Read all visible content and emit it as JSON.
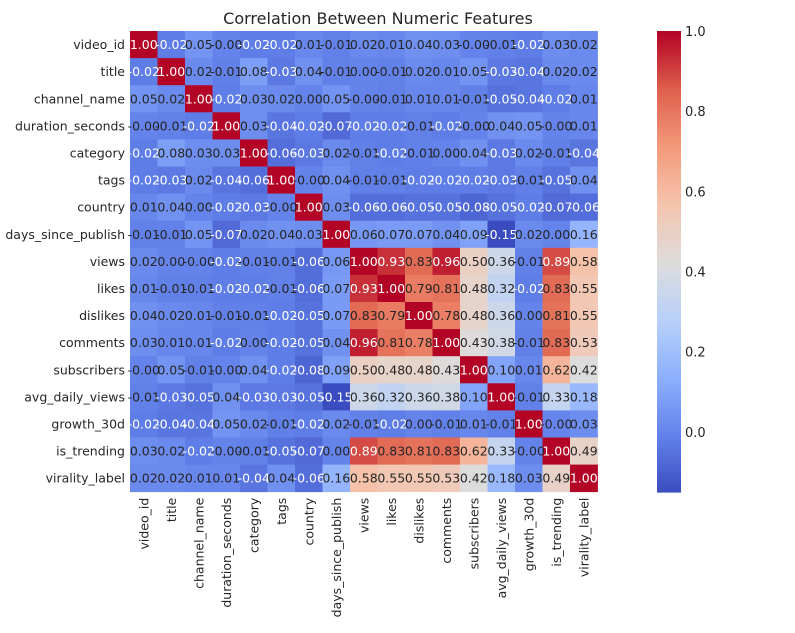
{
  "chart_data": {
    "type": "heatmap",
    "title": "Correlation Between Numeric Features",
    "xlabel": "",
    "ylabel": "",
    "categories": [
      "video_id",
      "title",
      "channel_name",
      "duration_seconds",
      "category",
      "tags",
      "country",
      "days_since_publish",
      "views",
      "likes",
      "dislikes",
      "comments",
      "subscribers",
      "avg_daily_views",
      "growth_30d",
      "is_trending",
      "virality_label"
    ],
    "values": [
      [
        "1.00",
        "-0.02",
        "0.05",
        "-0.00",
        "-0.02",
        "-0.02",
        "0.01",
        "-0.01",
        "0.02",
        "0.01",
        "0.04",
        "0.03",
        "-0.00",
        "-0.01",
        "-0.02",
        "0.03",
        "0.02"
      ],
      [
        "-0.02",
        "1.00",
        "0.02",
        "-0.01",
        "0.08",
        "-0.03",
        "0.04",
        "-0.01",
        "0.00",
        "-0.01",
        "0.02",
        "0.01",
        "0.05",
        "-0.03",
        "-0.04",
        "0.02",
        "0.02"
      ],
      [
        "0.05",
        "0.02",
        "1.00",
        "-0.02",
        "0.03",
        "0.02",
        "0.00",
        "0.05",
        "-0.00",
        "-0.01",
        "0.01",
        "0.01",
        "-0.01",
        "-0.05",
        "-0.04",
        "-0.02",
        "0.01"
      ],
      [
        "-0.00",
        "-0.01",
        "-0.02",
        "1.00",
        "0.03",
        "-0.04",
        "-0.02",
        "-0.07",
        "-0.02",
        "-0.02",
        "-0.01",
        "-0.02",
        "-0.00",
        "0.04",
        "0.05",
        "-0.00",
        "0.01"
      ],
      [
        "-0.02",
        "0.08",
        "0.03",
        "0.03",
        "1.00",
        "-0.06",
        "-0.03",
        "0.02",
        "-0.01",
        "-0.02",
        "-0.01",
        "0.00",
        "0.04",
        "-0.03",
        "0.02",
        "-0.01",
        "-0.04"
      ],
      [
        "-0.02",
        "-0.03",
        "0.02",
        "-0.04",
        "-0.06",
        "1.00",
        "-0.00",
        "0.04",
        "-0.01",
        "-0.01",
        "-0.02",
        "-0.02",
        "-0.02",
        "-0.03",
        "-0.01",
        "-0.05",
        "0.04"
      ],
      [
        "0.01",
        "0.04",
        "0.00",
        "-0.02",
        "-0.03",
        "-0.00",
        "1.00",
        "0.03",
        "-0.06",
        "-0.06",
        "-0.05",
        "-0.05",
        "-0.08",
        "-0.05",
        "-0.02",
        "-0.07",
        "-0.06"
      ],
      [
        "-0.01",
        "-0.01",
        "0.05",
        "-0.07",
        "0.02",
        "0.04",
        "0.03",
        "1.00",
        "0.06",
        "0.07",
        "0.07",
        "0.04",
        "0.09",
        "-0.15",
        "0.02",
        "0.00",
        "0.16"
      ],
      [
        "0.02",
        "0.00",
        "-0.00",
        "-0.02",
        "-0.01",
        "-0.01",
        "-0.06",
        "0.06",
        "1.00",
        "0.93",
        "0.83",
        "0.96",
        "0.50",
        "0.36",
        "-0.01",
        "0.89",
        "0.58"
      ],
      [
        "0.01",
        "-0.01",
        "-0.01",
        "-0.02",
        "-0.02",
        "-0.01",
        "-0.06",
        "0.07",
        "0.93",
        "1.00",
        "0.79",
        "0.81",
        "0.48",
        "0.32",
        "-0.02",
        "0.83",
        "0.55"
      ],
      [
        "0.04",
        "0.02",
        "0.01",
        "-0.01",
        "-0.01",
        "-0.02",
        "-0.05",
        "0.07",
        "0.83",
        "0.79",
        "1.00",
        "0.78",
        "0.48",
        "0.36",
        "0.00",
        "0.81",
        "0.55"
      ],
      [
        "0.03",
        "0.01",
        "0.01",
        "-0.02",
        "0.00",
        "-0.02",
        "-0.05",
        "0.04",
        "0.96",
        "0.81",
        "0.78",
        "1.00",
        "0.43",
        "0.38",
        "-0.01",
        "0.83",
        "0.53"
      ],
      [
        "-0.00",
        "0.05",
        "-0.01",
        "-0.00",
        "0.04",
        "-0.02",
        "-0.08",
        "0.09",
        "0.50",
        "0.48",
        "0.48",
        "0.43",
        "1.00",
        "0.10",
        "0.01",
        "0.62",
        "0.42"
      ],
      [
        "-0.01",
        "-0.03",
        "-0.05",
        "0.04",
        "-0.03",
        "-0.03",
        "-0.05",
        "-0.15",
        "0.36",
        "0.32",
        "0.36",
        "0.38",
        "0.10",
        "1.00",
        "-0.01",
        "0.33",
        "0.18"
      ],
      [
        "-0.02",
        "-0.04",
        "-0.04",
        "0.05",
        "0.02",
        "-0.01",
        "-0.02",
        "0.02",
        "-0.01",
        "-0.02",
        "0.00",
        "-0.01",
        "0.01",
        "-0.01",
        "1.00",
        "-0.00",
        "0.03"
      ],
      [
        "0.03",
        "0.02",
        "-0.02",
        "-0.00",
        "-0.01",
        "-0.05",
        "-0.07",
        "0.00",
        "0.89",
        "0.83",
        "0.81",
        "0.83",
        "0.62",
        "0.33",
        "-0.00",
        "1.00",
        "0.49"
      ],
      [
        "0.02",
        "0.02",
        "0.01",
        "0.01",
        "-0.04",
        "0.04",
        "-0.06",
        "0.16",
        "0.58",
        "0.55",
        "0.55",
        "0.53",
        "0.42",
        "0.18",
        "0.03",
        "0.49",
        "1.00"
      ]
    ],
    "colorbar": {
      "min": -0.15,
      "max": 1.0,
      "ticks": [
        "0.0",
        "0.2",
        "0.4",
        "0.6",
        "0.8",
        "1.0"
      ],
      "colormap": "coolwarm"
    },
    "colors": {
      "low": "#3b4cc0",
      "mid": "#dddcdc",
      "high": "#b40426",
      "text_dark": "#262626",
      "text_light": "#ffffff"
    },
    "grid": false,
    "legend": "colorbar-right"
  }
}
